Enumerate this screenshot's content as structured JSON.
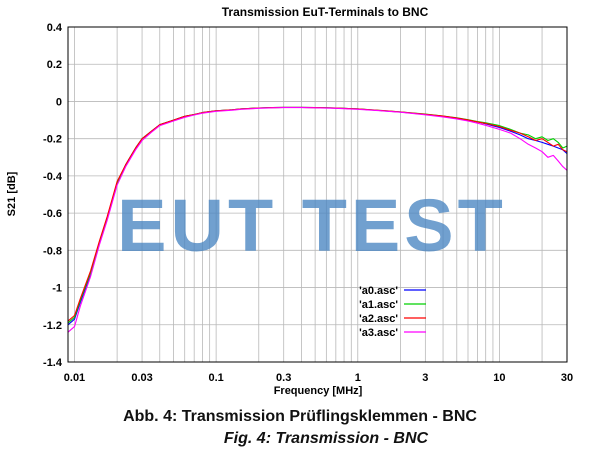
{
  "chart_data": {
    "type": "line",
    "title": "Transmission EuT-Terminals to BNC",
    "xlabel": "Frequency [MHz]",
    "ylabel": "S21 [dB]",
    "xscale": "log",
    "xlim": [
      0.009,
      30
    ],
    "ylim": [
      -1.4,
      0.4
    ],
    "x_ticks": [
      0.01,
      0.03,
      0.1,
      0.3,
      1,
      3,
      10,
      30
    ],
    "x_tick_labels": [
      "0.01",
      "0.03",
      "0.1",
      "0.3",
      "1",
      "3",
      "10",
      "30"
    ],
    "y_ticks": [
      0.4,
      0.2,
      0,
      -0.2,
      -0.4,
      -0.6,
      -0.8,
      -1,
      -1.2,
      -1.4
    ],
    "y_tick_labels": [
      "0.4",
      "0.2",
      "0",
      "-0.2",
      "-0.4",
      "-0.6",
      "-0.8",
      "-1",
      "-1.2",
      "-1.4"
    ],
    "grid": true,
    "legend_position": "lower-center",
    "x": [
      0.009,
      0.01,
      0.011,
      0.013,
      0.015,
      0.017,
      0.02,
      0.023,
      0.027,
      0.03,
      0.035,
      0.04,
      0.05,
      0.06,
      0.07,
      0.08,
      0.1,
      0.13,
      0.15,
      0.2,
      0.25,
      0.3,
      0.4,
      0.5,
      0.7,
      1,
      1.5,
      2,
      3,
      4,
      5,
      6,
      7,
      8,
      10,
      12,
      14,
      16,
      18,
      20,
      22,
      24,
      26,
      28,
      30
    ],
    "series": [
      {
        "name": "'a0.asc'",
        "color": "#0000ff",
        "values": [
          -1.2,
          -1.17,
          -1.08,
          -0.93,
          -0.76,
          -0.63,
          -0.44,
          -0.34,
          -0.25,
          -0.2,
          -0.16,
          -0.125,
          -0.1,
          -0.08,
          -0.07,
          -0.06,
          -0.05,
          -0.045,
          -0.04,
          -0.035,
          -0.033,
          -0.032,
          -0.032,
          -0.033,
          -0.036,
          -0.04,
          -0.05,
          -0.057,
          -0.07,
          -0.08,
          -0.09,
          -0.1,
          -0.11,
          -0.12,
          -0.14,
          -0.16,
          -0.18,
          -0.2,
          -0.21,
          -0.22,
          -0.23,
          -0.24,
          -0.25,
          -0.26,
          -0.28
        ]
      },
      {
        "name": "'a1.asc'",
        "color": "#00d000",
        "values": [
          -1.19,
          -1.16,
          -1.07,
          -0.92,
          -0.76,
          -0.63,
          -0.44,
          -0.34,
          -0.25,
          -0.2,
          -0.16,
          -0.125,
          -0.1,
          -0.08,
          -0.07,
          -0.06,
          -0.05,
          -0.045,
          -0.04,
          -0.035,
          -0.033,
          -0.032,
          -0.032,
          -0.033,
          -0.036,
          -0.04,
          -0.049,
          -0.056,
          -0.068,
          -0.078,
          -0.088,
          -0.098,
          -0.108,
          -0.115,
          -0.13,
          -0.15,
          -0.17,
          -0.18,
          -0.2,
          -0.19,
          -0.21,
          -0.2,
          -0.22,
          -0.25,
          -0.24
        ]
      },
      {
        "name": "'a2.asc'",
        "color": "#ff0000",
        "values": [
          -1.18,
          -1.15,
          -1.06,
          -0.91,
          -0.75,
          -0.62,
          -0.43,
          -0.34,
          -0.25,
          -0.2,
          -0.16,
          -0.125,
          -0.1,
          -0.08,
          -0.07,
          -0.06,
          -0.05,
          -0.045,
          -0.04,
          -0.035,
          -0.033,
          -0.032,
          -0.032,
          -0.033,
          -0.036,
          -0.04,
          -0.049,
          -0.056,
          -0.069,
          -0.079,
          -0.089,
          -0.099,
          -0.11,
          -0.118,
          -0.135,
          -0.155,
          -0.17,
          -0.19,
          -0.21,
          -0.2,
          -0.22,
          -0.24,
          -0.23,
          -0.26,
          -0.27
        ]
      },
      {
        "name": "'a3.asc'",
        "color": "#ff00ff",
        "values": [
          -1.24,
          -1.21,
          -1.1,
          -0.94,
          -0.77,
          -0.64,
          -0.45,
          -0.35,
          -0.26,
          -0.21,
          -0.165,
          -0.13,
          -0.105,
          -0.085,
          -0.073,
          -0.063,
          -0.053,
          -0.047,
          -0.042,
          -0.037,
          -0.034,
          -0.033,
          -0.033,
          -0.034,
          -0.037,
          -0.042,
          -0.051,
          -0.058,
          -0.072,
          -0.083,
          -0.094,
          -0.105,
          -0.117,
          -0.128,
          -0.15,
          -0.17,
          -0.2,
          -0.23,
          -0.25,
          -0.27,
          -0.3,
          -0.29,
          -0.32,
          -0.35,
          -0.37
        ]
      }
    ]
  },
  "watermark": "EUT TEST",
  "captions": {
    "german": "Abb. 4: Transmission Prüflingsklemmen - BNC",
    "english": "Fig. 4: Transmission - BNC"
  }
}
